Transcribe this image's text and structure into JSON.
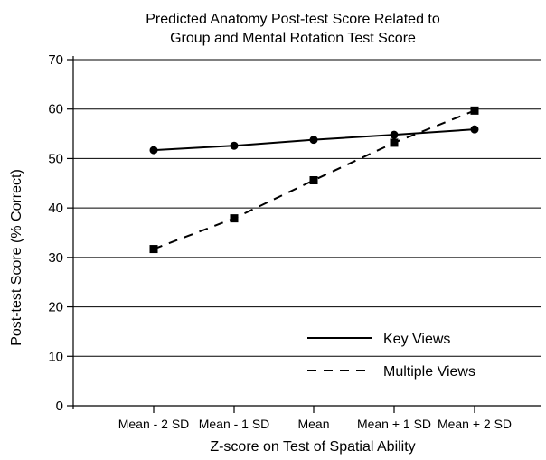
{
  "chart_data": {
    "type": "line",
    "title_lines": [
      "Predicted Anatomy Post-test Score Related to",
      "Group and Mental Rotation Test Score"
    ],
    "xlabel": "Z-score on Test of Spatial Ability",
    "ylabel": "Post-test Score (% Correct)",
    "categories": [
      "Mean - 2 SD",
      "Mean - 1 SD",
      "Mean",
      "Mean + 1 SD",
      "Mean + 2 SD"
    ],
    "ylim": [
      0,
      70
    ],
    "yticks": [
      0,
      10,
      20,
      30,
      40,
      50,
      60,
      70
    ],
    "grid": "horizontal",
    "legend_position": "bottom-right",
    "series": [
      {
        "name": "Key Views",
        "marker": "circle",
        "line_style": "solid",
        "values": [
          51.7,
          52.6,
          53.8,
          54.8,
          55.9
        ]
      },
      {
        "name": "Multiple Views",
        "marker": "square",
        "line_style": "dashed",
        "values": [
          31.7,
          37.9,
          45.6,
          53.2,
          59.7
        ]
      }
    ],
    "colors": {
      "line": "#000000",
      "grid": "#000000",
      "background": "#ffffff"
    }
  }
}
